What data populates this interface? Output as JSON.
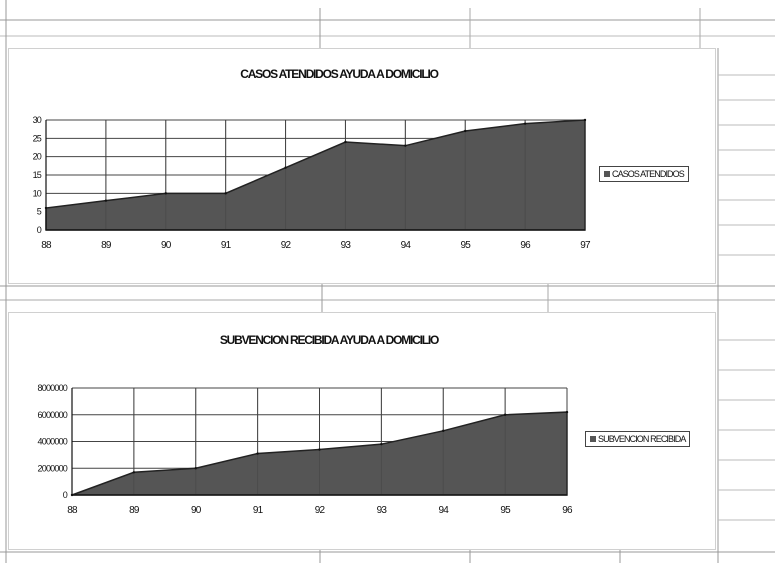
{
  "colors": {
    "area": "#555555",
    "grid": "#444444",
    "panel_border": "#d0d0d0"
  },
  "chart_data": [
    {
      "type": "area",
      "title": "CASOS ATENDIDOS AYUDA A DOMICILIO",
      "categories": [
        "88",
        "89",
        "90",
        "91",
        "92",
        "93",
        "94",
        "95",
        "96",
        "97"
      ],
      "series": [
        {
          "name": "CASOS ATENDIDOS",
          "values": [
            6,
            8,
            10,
            10,
            17,
            24,
            23,
            27,
            29,
            30
          ]
        }
      ],
      "ylim": [
        0,
        30
      ],
      "yticks": [
        0,
        5,
        10,
        15,
        20,
        25,
        30
      ],
      "grid": true,
      "legend": "right"
    },
    {
      "type": "area",
      "title": "SUBVENCION RECIBIDA AYUDA A DOMICILIO",
      "categories": [
        "88",
        "89",
        "90",
        "91",
        "92",
        "93",
        "94",
        "95",
        "96"
      ],
      "series": [
        {
          "name": "SUBVENCION RECIBIDA",
          "values": [
            0,
            1700000,
            2000000,
            3100000,
            3400000,
            3800000,
            4800000,
            6000000,
            6200000
          ]
        }
      ],
      "ylim": [
        0,
        8000000
      ],
      "yticks": [
        0,
        2000000,
        4000000,
        6000000,
        8000000
      ],
      "ytick_labels": [
        "0",
        "2000000",
        "4000000",
        "6000000",
        "8000000"
      ],
      "grid": true,
      "legend": "right"
    }
  ]
}
